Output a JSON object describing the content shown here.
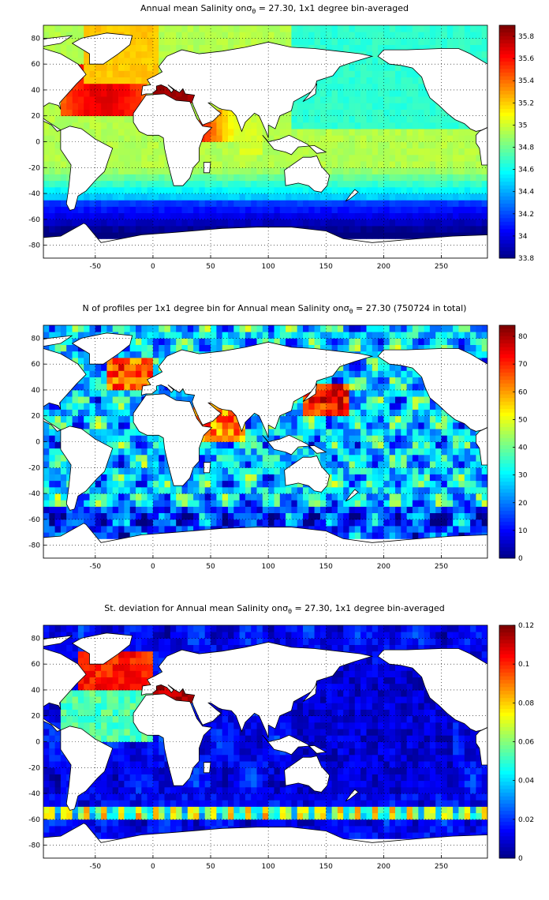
{
  "chart_data": [
    {
      "type": "heatmap",
      "title": "Annual mean Salinity on σθ = 27.30, 1x1 degree bin-averaged",
      "title_parts": {
        "before": "Annual mean Salinity on",
        "sigma": "σ",
        "sub": "θ",
        "after": " = 27.30, 1x1 degree bin-averaged"
      },
      "x_ticks": [
        "-50",
        "0",
        "50",
        "100",
        "150",
        "200",
        "250"
      ],
      "y_ticks": [
        "80",
        "60",
        "40",
        "20",
        "0",
        "-20",
        "-40",
        "-60",
        "-80"
      ],
      "xlim": [
        -95,
        290
      ],
      "ylim": [
        -90,
        90
      ],
      "colorbar_ticks": [
        "35.8",
        "35.6",
        "35.4",
        "35.2",
        "35",
        "34.8",
        "34.6",
        "34.4",
        "34.2",
        "34",
        "33.8"
      ],
      "colorbar_range": [
        33.8,
        35.9
      ],
      "colormap": "jet",
      "grid": "dotted"
    },
    {
      "type": "heatmap",
      "title": "N of profiles per 1x1 degree bin for Annual mean Salinity on σθ = 27.30 (750724 in total)",
      "title_parts": {
        "before": "N of profiles per 1x1 degree bin for Annual mean Salinity on",
        "sigma": "σ",
        "sub": "θ",
        "after": " = 27.30 (750724 in total)"
      },
      "x_ticks": [
        "-50",
        "0",
        "50",
        "100",
        "150",
        "200",
        "250"
      ],
      "y_ticks": [
        "80",
        "60",
        "40",
        "20",
        "0",
        "-20",
        "-40",
        "-60",
        "-80"
      ],
      "xlim": [
        -95,
        290
      ],
      "ylim": [
        -90,
        90
      ],
      "colorbar_ticks": [
        "80",
        "70",
        "60",
        "50",
        "40",
        "30",
        "20",
        "10",
        "0"
      ],
      "colorbar_range": [
        0,
        84
      ],
      "colormap": "jet",
      "grid": "dotted"
    },
    {
      "type": "heatmap",
      "title": "St. deviation for Annual mean Salinity on σθ = 27.30, 1x1 degree bin-averaged",
      "title_parts": {
        "before": "St. deviation for Annual mean Salinity on",
        "sigma": "σ",
        "sub": "θ",
        "after": " = 27.30, 1x1 degree bin-averaged"
      },
      "x_ticks": [
        "-50",
        "0",
        "50",
        "100",
        "150",
        "200",
        "250"
      ],
      "y_ticks": [
        "80",
        "60",
        "40",
        "20",
        "0",
        "-20",
        "-40",
        "-60",
        "-80"
      ],
      "xlim": [
        -95,
        290
      ],
      "ylim": [
        -90,
        90
      ],
      "colorbar_ticks": [
        "0.12",
        "0.1",
        "0.08",
        "0.06",
        "0.04",
        "0.02",
        "0"
      ],
      "colorbar_range": [
        0,
        0.12
      ],
      "colormap": "jet",
      "grid": "dotted"
    }
  ]
}
